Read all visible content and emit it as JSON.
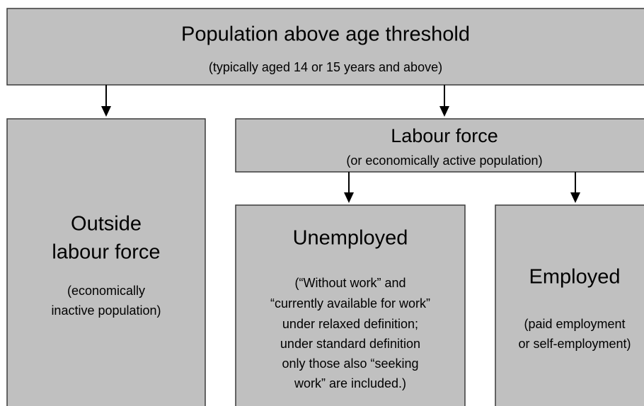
{
  "nodes": [
    {
      "title": [
        "Population above age threshold"
      ],
      "description": [
        "(typically aged 14 or 15 years and above)"
      ]
    },
    {
      "title": [
        "Outside",
        "labour force"
      ],
      "description": [
        "(economically",
        "inactive population)"
      ]
    },
    {
      "title": [
        "Labour force"
      ],
      "description": [
        "(or economically active population)"
      ]
    },
    {
      "title": [
        "Unemployed"
      ],
      "description": [
        "(“Without work” and",
        "“currently available for work”",
        "under relaxed definition;",
        "under standard definition",
        "only those also “seeking",
        "work” are included.)"
      ]
    },
    {
      "title": [
        "Employed"
      ],
      "description": [
        "(paid employment",
        "or self-employment)"
      ]
    }
  ]
}
